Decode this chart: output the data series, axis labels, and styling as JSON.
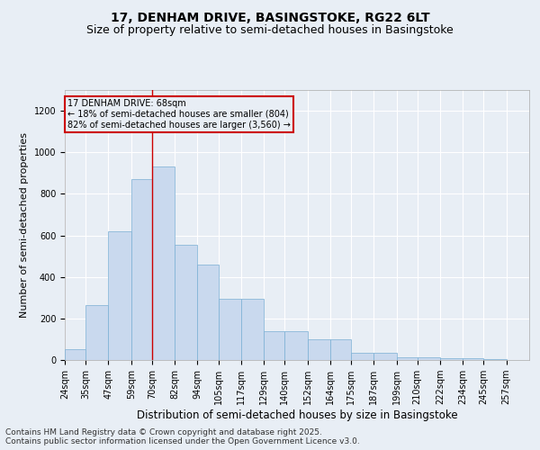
{
  "title": "17, DENHAM DRIVE, BASINGSTOKE, RG22 6LT",
  "subtitle": "Size of property relative to semi-detached houses in Basingstoke",
  "xlabel": "Distribution of semi-detached houses by size in Basingstoke",
  "ylabel": "Number of semi-detached properties",
  "bar_color": "#c9d9ee",
  "bar_edge_color": "#7aafd4",
  "background_color": "#e8eef5",
  "grid_color": "#ffffff",
  "property_sqm": 68,
  "percent_smaller": 18,
  "count_smaller": 804,
  "percent_larger": 82,
  "count_larger": 3560,
  "annotation_box_color": "#cc0000",
  "categories": [
    "24sqm",
    "35sqm",
    "47sqm",
    "59sqm",
    "70sqm",
    "82sqm",
    "94sqm",
    "105sqm",
    "117sqm",
    "129sqm",
    "140sqm",
    "152sqm",
    "164sqm",
    "175sqm",
    "187sqm",
    "199sqm",
    "210sqm",
    "222sqm",
    "234sqm",
    "245sqm",
    "257sqm"
  ],
  "bin_edges": [
    24,
    35,
    47,
    59,
    70,
    82,
    94,
    105,
    117,
    129,
    140,
    152,
    164,
    175,
    187,
    199,
    210,
    222,
    234,
    245,
    257,
    269
  ],
  "values": [
    50,
    265,
    620,
    870,
    930,
    555,
    460,
    295,
    295,
    140,
    140,
    100,
    100,
    35,
    35,
    15,
    15,
    8,
    8,
    3,
    0
  ],
  "ylim": [
    0,
    1300
  ],
  "yticks": [
    0,
    200,
    400,
    600,
    800,
    1000,
    1200
  ],
  "footnote": "Contains HM Land Registry data © Crown copyright and database right 2025.\nContains public sector information licensed under the Open Government Licence v3.0.",
  "title_fontsize": 10,
  "subtitle_fontsize": 9,
  "axis_label_fontsize": 8.5,
  "tick_fontsize": 7,
  "footnote_fontsize": 6.5,
  "ylabel_fontsize": 8
}
